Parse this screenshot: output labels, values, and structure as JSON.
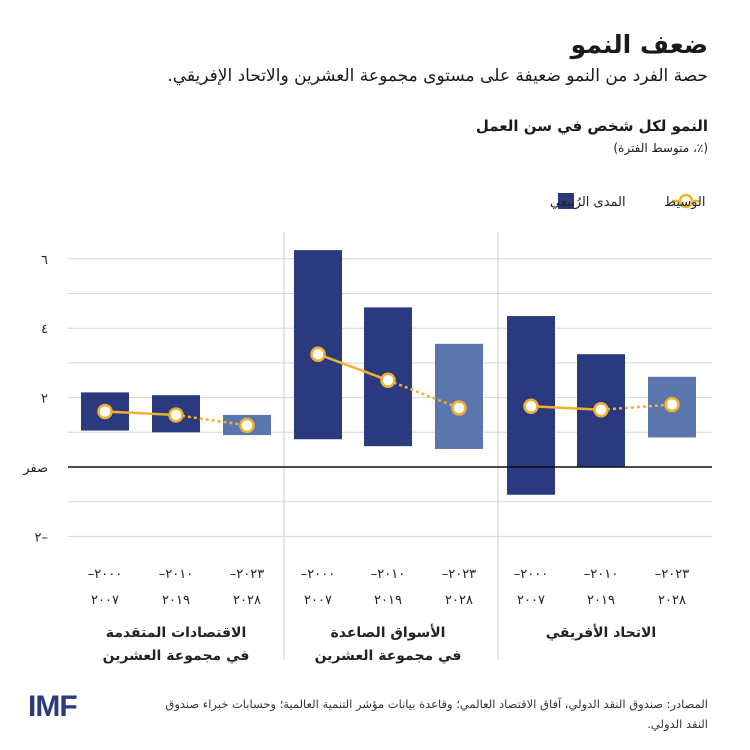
{
  "title": "ضعف النمو",
  "subtitle": "حصة الفرد من النمو ضعيفة على مستوى مجموعة العشرين والاتحاد الإفريقي.",
  "source": "المصادر: صندوق النقد الدولي، آفاق الاقتصاد العالمي؛ وقاعدة بيانات مؤشر التنمية العالمية؛ وحسابات خبراء صندوق النقد الدولي.",
  "logo": "IMF",
  "colors": {
    "range_dark": "#2b3a7f",
    "range_light": "#5b76ad",
    "median": "#f0b030"
  },
  "chart_data": {
    "type": "bar",
    "title": "النمو لكل شخص في سن العمل",
    "subtitle": "(٪، متوسط الفترة)",
    "legend": {
      "median": "الوسيط",
      "range": "المدى الرُبيعي",
      "placement": "top"
    },
    "ylim": [
      -2,
      6.4
    ],
    "yticks": [
      {
        "v": 6,
        "label": "٦"
      },
      {
        "v": 4,
        "label": "٤"
      },
      {
        "v": 2,
        "label": "٢"
      },
      {
        "v": 0,
        "label": "صفر"
      },
      {
        "v": -2,
        "label": "٢–"
      }
    ],
    "grid": true,
    "periods": [
      {
        "l1": "–٢٠٠٠",
        "l2": "٢٠٠٧"
      },
      {
        "l1": "–٢٠١٠",
        "l2": "٢٠١٩"
      },
      {
        "l1": "–٢٠٢٣",
        "l2": "٢٠٢٨"
      }
    ],
    "groups": [
      {
        "name1": "الاقتصادات المتقدمة",
        "name2": "في مجموعة العشرين",
        "low": [
          1.05,
          1.0,
          0.92
        ],
        "high": [
          2.15,
          2.07,
          1.5
        ],
        "median": [
          1.6,
          1.5,
          1.2
        ]
      },
      {
        "name1": "الأسواق الصاعدة",
        "name2": "في مجموعة العشرين",
        "low": [
          0.8,
          0.6,
          0.52
        ],
        "high": [
          6.25,
          4.6,
          3.55
        ],
        "median": [
          3.25,
          2.5,
          1.7
        ]
      },
      {
        "name1": "الاتحاد الأفريقي",
        "name2": "",
        "low": [
          -0.8,
          0.0,
          0.85
        ],
        "high": [
          4.35,
          3.25,
          2.6
        ],
        "median": [
          1.75,
          1.65,
          1.8
        ]
      }
    ]
  }
}
